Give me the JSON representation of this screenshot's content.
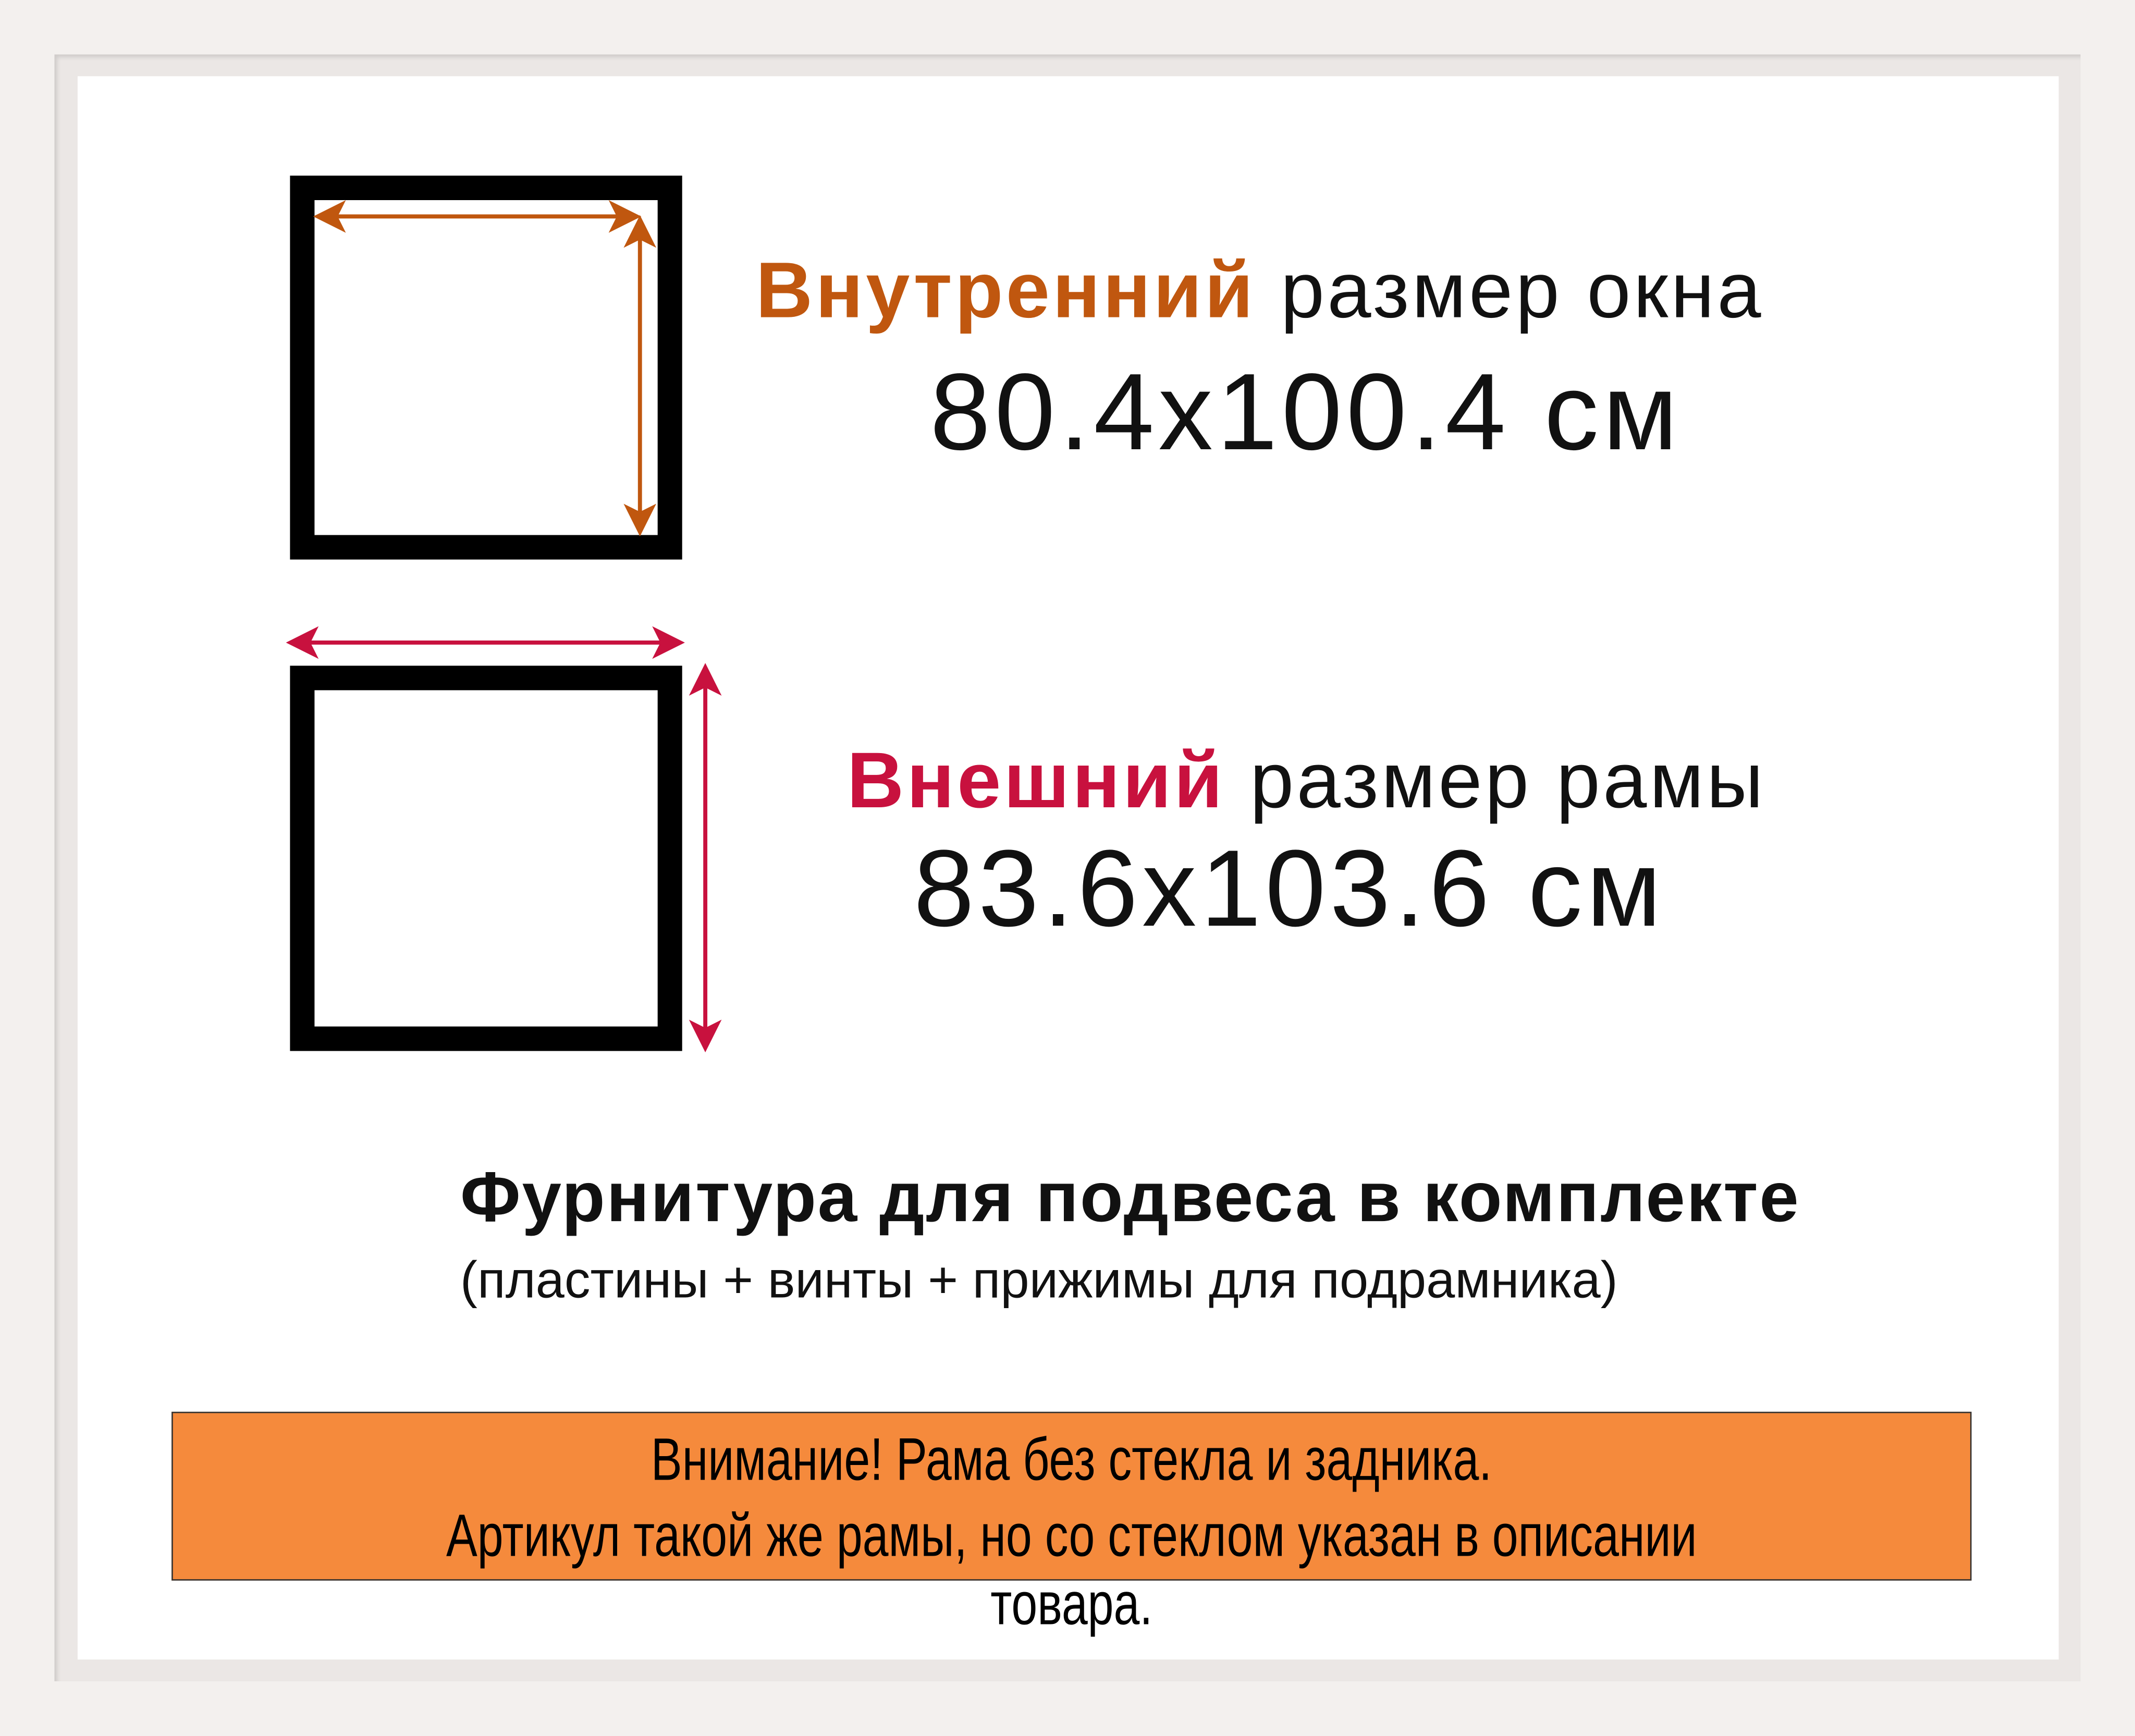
{
  "inner_size": {
    "label_highlight": "Внутренний",
    "label_rest": " размер окна",
    "value": "80.4x100.4 см",
    "color": "#c0570f"
  },
  "outer_size": {
    "label_highlight": "Внешний",
    "label_rest": " размер рамы",
    "value": "83.6x103.6 см",
    "color": "#c8113e"
  },
  "fittings": {
    "title": "Фурнитура для подвеса в комплекте",
    "subtitle": "(пластины + винты + прижимы для подрамника)"
  },
  "notice": {
    "line1": "Внимание! Рама без стекла и задника.",
    "line2": "Артикул такой же рамы, но со стеклом указан в описании товара.",
    "background": "#f58a3c"
  },
  "icons": [
    "inner-size-diagram-icon",
    "outer-size-diagram-icon"
  ]
}
